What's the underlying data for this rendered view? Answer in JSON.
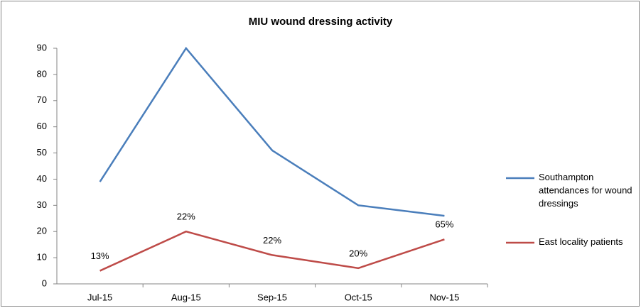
{
  "chart_data": {
    "type": "line",
    "title": "MIU wound dressing activity",
    "categories": [
      "Jul-15",
      "Aug-15",
      "Sep-15",
      "Oct-15",
      "Nov-15"
    ],
    "series": [
      {
        "name": "Southampton attendances for wound dressings",
        "color": "#4a7ebb",
        "values": [
          39,
          90,
          51,
          30,
          26
        ]
      },
      {
        "name": "East locality patients",
        "color": "#be4b48",
        "values": [
          5,
          20,
          11,
          6,
          17
        ]
      }
    ],
    "annotations": [
      "13%",
      "22%",
      "22%",
      "20%",
      "65%"
    ],
    "ylim": [
      0,
      90
    ],
    "yticks": [
      0,
      10,
      20,
      30,
      40,
      50,
      60,
      70,
      80,
      90
    ],
    "grid": false,
    "legend": "right"
  }
}
